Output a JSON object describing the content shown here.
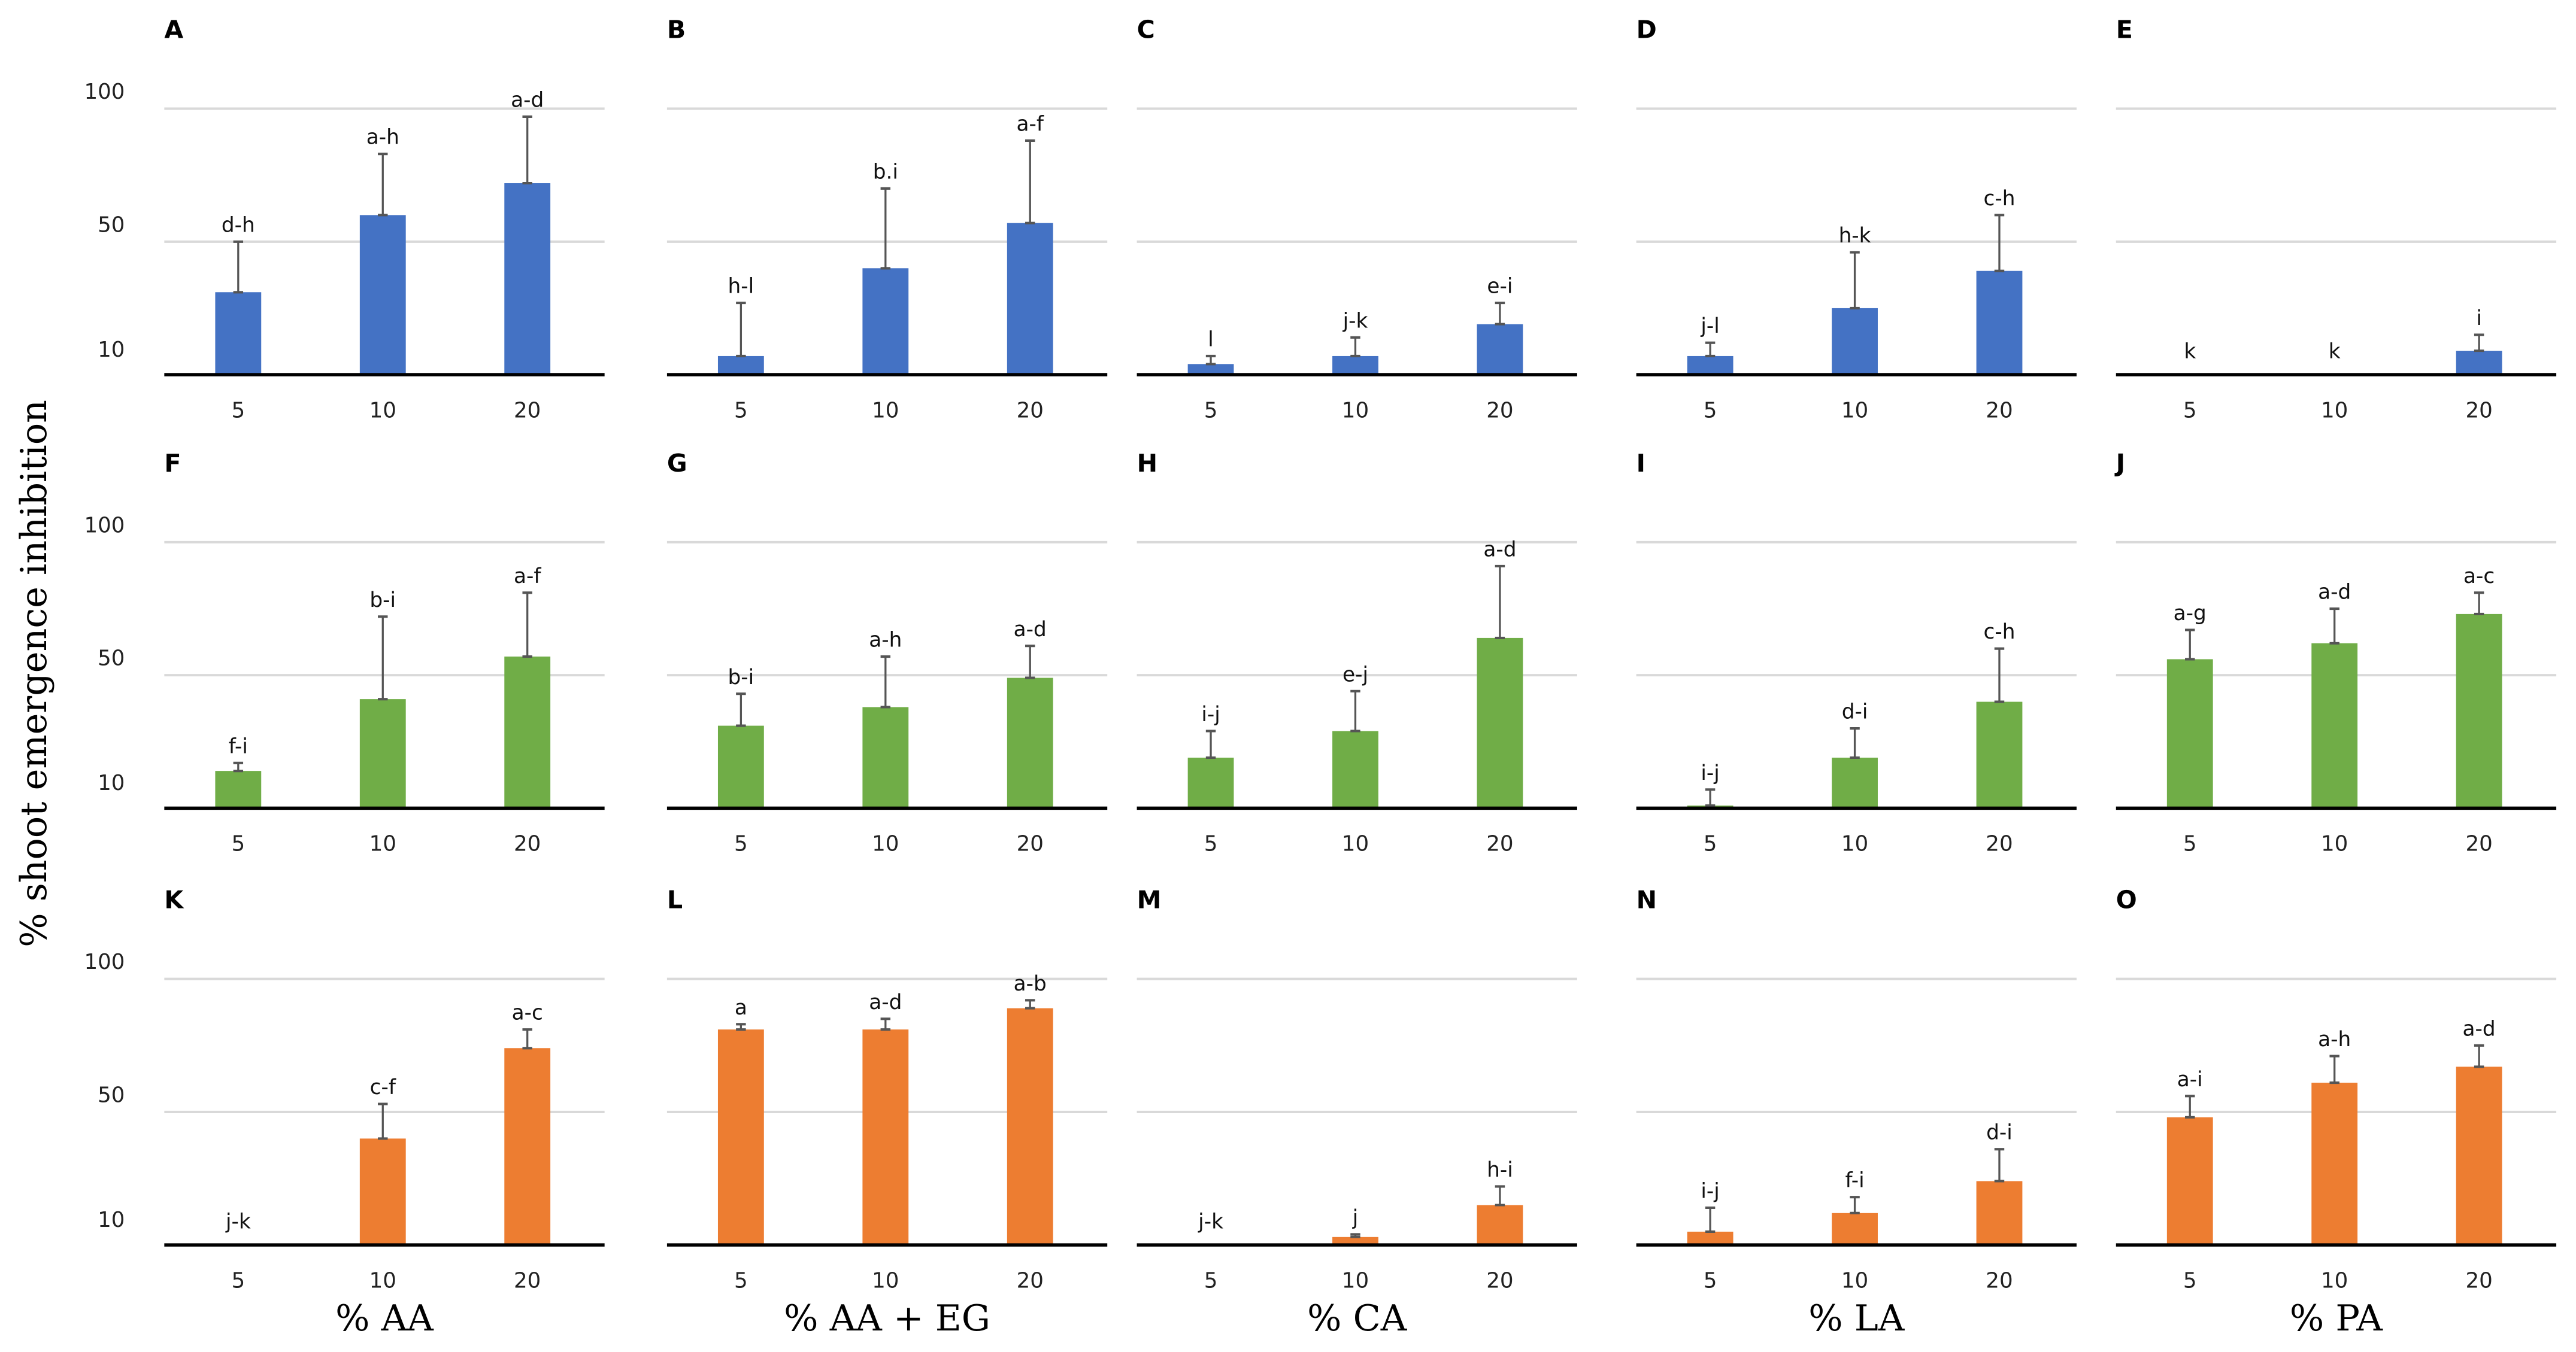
{
  "ylabel": "% shoot emergence inhibition",
  "ytick_labels": [
    "100",
    "50",
    "10"
  ],
  "chart_data": [
    {
      "type": "bar",
      "panel": "A",
      "row": 0,
      "col": 0,
      "color": "#4472C4",
      "categories": [
        "5",
        "10",
        "20"
      ],
      "values": [
        31,
        60,
        72
      ],
      "error_upper": [
        50,
        83,
        97
      ],
      "letters": [
        "d-h",
        "a-h",
        "a-d"
      ],
      "ylim": [
        0,
        100
      ]
    },
    {
      "type": "bar",
      "panel": "B",
      "row": 0,
      "col": 1,
      "color": "#4472C4",
      "categories": [
        "5",
        "10",
        "20"
      ],
      "values": [
        7,
        40,
        57
      ],
      "error_upper": [
        27,
        70,
        88
      ],
      "letters": [
        "h-l",
        "b.i",
        "a-f"
      ],
      "ylim": [
        0,
        100
      ]
    },
    {
      "type": "bar",
      "panel": "C",
      "row": 0,
      "col": 2,
      "color": "#4472C4",
      "categories": [
        "5",
        "10",
        "20"
      ],
      "values": [
        4,
        7,
        19
      ],
      "error_upper": [
        7,
        14,
        27
      ],
      "letters": [
        "l",
        "j-k",
        "e-i"
      ],
      "ylim": [
        0,
        100
      ]
    },
    {
      "type": "bar",
      "panel": "D",
      "row": 0,
      "col": 3,
      "color": "#4472C4",
      "categories": [
        "5",
        "10",
        "20"
      ],
      "values": [
        7,
        25,
        39
      ],
      "error_upper": [
        12,
        46,
        60
      ],
      "letters": [
        "j-l",
        "h-k",
        "c-h"
      ],
      "ylim": [
        0,
        100
      ]
    },
    {
      "type": "bar",
      "panel": "E",
      "row": 0,
      "col": 4,
      "color": "#4472C4",
      "categories": [
        "5",
        "10",
        "20"
      ],
      "values": [
        0,
        0,
        9
      ],
      "error_upper": [
        0,
        0,
        15
      ],
      "letters": [
        "k",
        "k",
        "i"
      ],
      "ylim": [
        0,
        100
      ]
    },
    {
      "type": "bar",
      "panel": "F",
      "row": 1,
      "col": 0,
      "color": "#70AD47",
      "categories": [
        "5",
        "10",
        "20"
      ],
      "values": [
        14,
        41,
        57
      ],
      "error_upper": [
        17,
        72,
        81
      ],
      "letters": [
        "f-i",
        "b-i",
        "a-f"
      ],
      "ylim": [
        0,
        100
      ]
    },
    {
      "type": "bar",
      "panel": "G",
      "row": 1,
      "col": 1,
      "color": "#70AD47",
      "categories": [
        "5",
        "10",
        "20"
      ],
      "values": [
        31,
        38,
        49
      ],
      "error_upper": [
        43,
        57,
        61
      ],
      "letters": [
        "b-i",
        "a-h",
        "a-d"
      ],
      "ylim": [
        0,
        100
      ]
    },
    {
      "type": "bar",
      "panel": "H",
      "row": 1,
      "col": 2,
      "color": "#70AD47",
      "categories": [
        "5",
        "10",
        "20"
      ],
      "values": [
        19,
        29,
        64
      ],
      "error_upper": [
        29,
        44,
        91
      ],
      "letters": [
        "i-j",
        "e-j",
        "a-d"
      ],
      "ylim": [
        0,
        100
      ]
    },
    {
      "type": "bar",
      "panel": "I",
      "row": 1,
      "col": 3,
      "color": "#70AD47",
      "categories": [
        "5",
        "10",
        "20"
      ],
      "values": [
        1,
        19,
        40
      ],
      "error_upper": [
        7,
        30,
        60
      ],
      "letters": [
        "i-j",
        "d-i",
        "c-h"
      ],
      "ylim": [
        0,
        100
      ]
    },
    {
      "type": "bar",
      "panel": "J",
      "row": 1,
      "col": 4,
      "color": "#70AD47",
      "categories": [
        "5",
        "10",
        "20"
      ],
      "values": [
        56,
        62,
        73
      ],
      "error_upper": [
        67,
        75,
        81
      ],
      "letters": [
        "a-g",
        "a-d",
        "a-c"
      ],
      "ylim": [
        0,
        100
      ]
    },
    {
      "type": "bar",
      "panel": "K",
      "row": 2,
      "col": 0,
      "color": "#ED7D31",
      "categories": [
        "5",
        "10",
        "20"
      ],
      "values": [
        0,
        40,
        74
      ],
      "error_upper": [
        0,
        53,
        81
      ],
      "letters": [
        "j-k",
        "c-f",
        "a-c"
      ],
      "ylim": [
        0,
        100
      ],
      "xlabel": "% AA"
    },
    {
      "type": "bar",
      "panel": "L",
      "row": 2,
      "col": 1,
      "color": "#ED7D31",
      "categories": [
        "5",
        "10",
        "20"
      ],
      "values": [
        81,
        81,
        89
      ],
      "error_upper": [
        83,
        85,
        92
      ],
      "letters": [
        "a",
        "a-d",
        "a-b"
      ],
      "ylim": [
        0,
        100
      ],
      "xlabel": "% AA + EG"
    },
    {
      "type": "bar",
      "panel": "M",
      "row": 2,
      "col": 2,
      "color": "#ED7D31",
      "categories": [
        "5",
        "10",
        "20"
      ],
      "values": [
        0,
        3,
        15
      ],
      "error_upper": [
        0,
        4,
        22
      ],
      "letters": [
        "j-k",
        "j",
        "h-i"
      ],
      "ylim": [
        0,
        100
      ],
      "xlabel": "% CA"
    },
    {
      "type": "bar",
      "panel": "N",
      "row": 2,
      "col": 3,
      "color": "#ED7D31",
      "categories": [
        "5",
        "10",
        "20"
      ],
      "values": [
        5,
        12,
        24
      ],
      "error_upper": [
        14,
        18,
        36
      ],
      "letters": [
        "i-j",
        "f-i",
        "d-i"
      ],
      "ylim": [
        0,
        100
      ],
      "xlabel": "% LA"
    },
    {
      "type": "bar",
      "panel": "O",
      "row": 2,
      "col": 4,
      "color": "#ED7D31",
      "categories": [
        "5",
        "10",
        "20"
      ],
      "values": [
        48,
        61,
        67
      ],
      "error_upper": [
        56,
        71,
        75
      ],
      "letters": [
        "a-i",
        "a-h",
        "a-d"
      ],
      "ylim": [
        0,
        100
      ],
      "xlabel": "% PA"
    }
  ]
}
